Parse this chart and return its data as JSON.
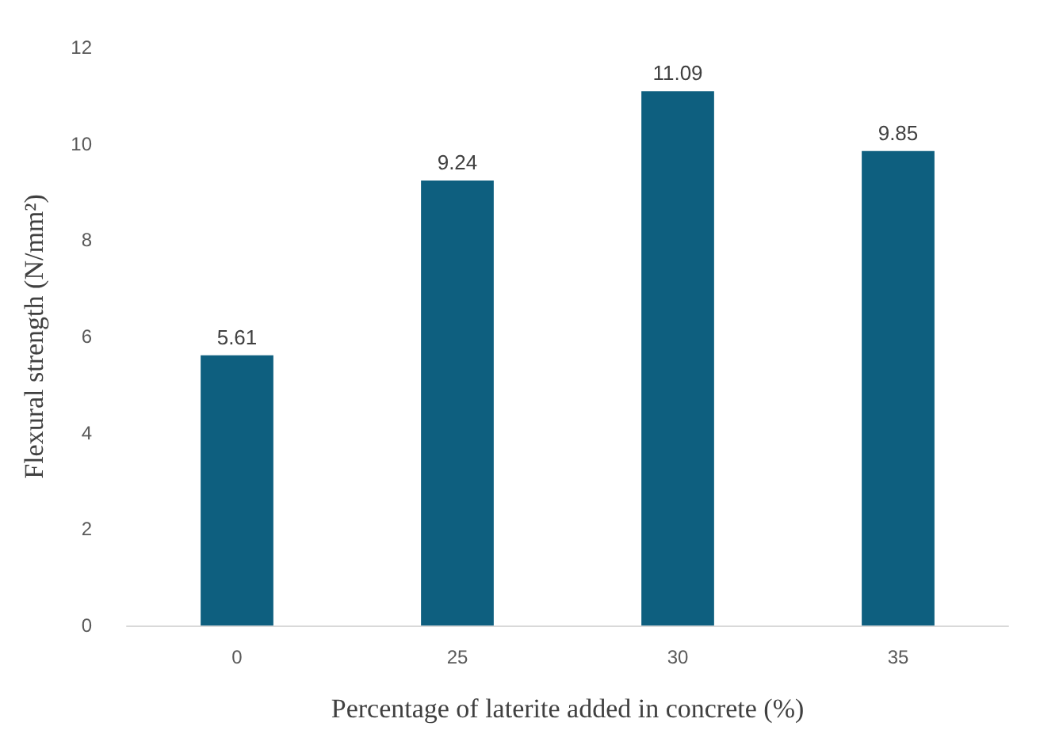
{
  "chart_data": {
    "type": "bar",
    "xlabel": "Percentage of laterite added in concrete (%)",
    "ylabel": "Flexural strength (N/mm²)",
    "categories": [
      "0",
      "25",
      "30",
      "35"
    ],
    "values": [
      5.61,
      9.24,
      11.09,
      9.85
    ],
    "color": "#0e5f7f",
    "ylim": [
      0,
      12
    ],
    "yticks": [
      0,
      2,
      4,
      6,
      8,
      10,
      12
    ],
    "grid": false,
    "data_labels": true
  }
}
